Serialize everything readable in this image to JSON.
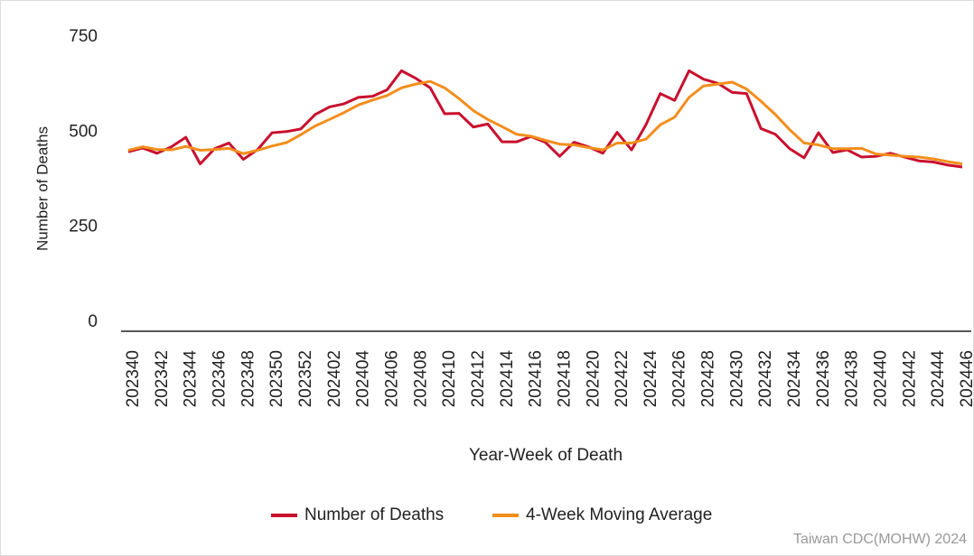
{
  "chart_data": {
    "type": "line",
    "x_label": "Year-Week of Death",
    "y_label": "Number of Deaths",
    "source": "Taiwan CDC(MOHW) 2024",
    "categories": [
      "202340",
      null,
      "202342",
      null,
      "202344",
      null,
      "202346",
      null,
      "202348",
      null,
      "202350",
      null,
      "202352",
      null,
      "202402",
      null,
      "202404",
      null,
      "202406",
      null,
      "202408",
      null,
      "202410",
      null,
      "202412",
      null,
      "202414",
      null,
      "202416",
      null,
      "202418",
      null,
      "202420",
      null,
      "202422",
      null,
      "202424",
      null,
      "202426",
      null,
      "202428",
      null,
      "202430",
      null,
      "202432",
      null,
      "202434",
      null,
      "202436",
      null,
      "202438",
      null,
      "202440",
      null,
      "202442",
      null,
      "202444",
      null,
      "202446"
    ],
    "series": [
      {
        "name": "Number of Deaths",
        "color": "#c8102e",
        "values": [
          472,
          482,
          468,
          485,
          510,
          440,
          480,
          495,
          452,
          478,
          522,
          525,
          532,
          570,
          590,
          598,
          615,
          618,
          635,
          685,
          665,
          640,
          572,
          573,
          537,
          545,
          498,
          498,
          512,
          497,
          460,
          497,
          485,
          468,
          523,
          477,
          543,
          625,
          607,
          685,
          663,
          652,
          628,
          625,
          533,
          518,
          480,
          456,
          522,
          470,
          477,
          458,
          460,
          468,
          458,
          448,
          445,
          437,
          432
        ]
      },
      {
        "name": "4-Week Moving Average",
        "color": "#f28e1c",
        "values": [
          476,
          485,
          478,
          477,
          486,
          476,
          478,
          481,
          467,
          476,
          487,
          496,
          517,
          540,
          557,
          575,
          595,
          608,
          620,
          640,
          650,
          657,
          640,
          612,
          580,
          557,
          538,
          518,
          513,
          502,
          492,
          490,
          483,
          477,
          495,
          495,
          505,
          543,
          563,
          615,
          645,
          650,
          655,
          637,
          605,
          570,
          530,
          495,
          490,
          480,
          480,
          481,
          466,
          463,
          460,
          458,
          453,
          446,
          440
        ]
      }
    ],
    "ylim": [
      0,
      750
    ],
    "yticks": [
      0,
      250,
      500,
      750
    ],
    "grid": false,
    "legend": "bottom"
  }
}
